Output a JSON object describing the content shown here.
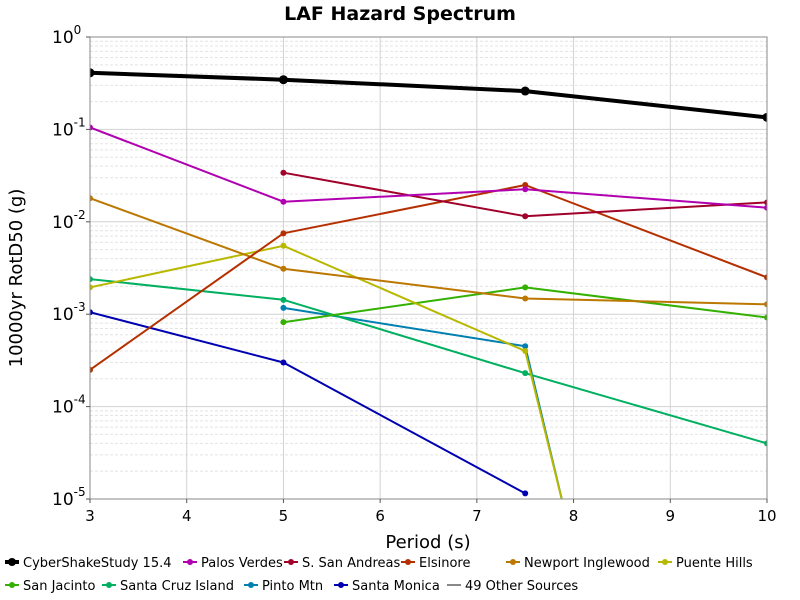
{
  "chart_data": {
    "type": "line",
    "title": "LAF Hazard Spectrum",
    "xlabel": "Period (s)",
    "ylabel": "10000yr RotD50 (g)",
    "xlim": [
      3,
      10
    ],
    "ylim": [
      1e-05,
      1
    ],
    "y_scale": "log",
    "x_ticks": [
      3,
      4,
      5,
      6,
      7,
      8,
      9,
      10
    ],
    "y_ticks": [
      {
        "base": "10",
        "exp": "0",
        "value": 1
      },
      {
        "base": "10",
        "exp": "-1",
        "value": 0.1
      },
      {
        "base": "10",
        "exp": "-2",
        "value": 0.01
      },
      {
        "base": "10",
        "exp": "-3",
        "value": 0.001
      },
      {
        "base": "10",
        "exp": "-4",
        "value": 0.0001
      },
      {
        "base": "10",
        "exp": "-5",
        "value": 1e-05
      }
    ],
    "grid": true,
    "legend_placement": "bottom",
    "series": [
      {
        "name": "CyberShakeStudy 15.4",
        "color": "#000000",
        "bold": true,
        "x": [
          3,
          5,
          7.5,
          10
        ],
        "y": [
          0.41,
          0.345,
          0.26,
          0.135
        ]
      },
      {
        "name": "Palos Verdes",
        "color": "#b000b0",
        "x": [
          3,
          5,
          7.5,
          10
        ],
        "y": [
          0.105,
          0.0165,
          0.0225,
          0.0142
        ]
      },
      {
        "name": "S. San Andreas",
        "color": "#a0002a",
        "x": [
          5,
          7.5,
          10
        ],
        "y": [
          0.034,
          0.0115,
          0.0162
        ]
      },
      {
        "name": "Elsinore",
        "color": "#b53000",
        "x": [
          3,
          5,
          7.5,
          10
        ],
        "y": [
          0.00025,
          0.0075,
          0.025,
          0.0025
        ]
      },
      {
        "name": "Newport Inglewood",
        "color": "#bb7700",
        "x": [
          3,
          5,
          7.5,
          10
        ],
        "y": [
          0.018,
          0.0031,
          0.00148,
          0.00128
        ]
      },
      {
        "name": "Puente Hills",
        "color": "#b8b800",
        "x": [
          3,
          5,
          7.5,
          7.9
        ],
        "y": [
          0.00195,
          0.0055,
          0.0004,
          8e-06
        ]
      },
      {
        "name": "San Jacinto",
        "color": "#33b000",
        "x": [
          5,
          7.5,
          10
        ],
        "y": [
          0.00082,
          0.00195,
          0.00092
        ]
      },
      {
        "name": "Santa Cruz Island",
        "color": "#00b060",
        "x": [
          3,
          5,
          7.5,
          10
        ],
        "y": [
          0.0024,
          0.00143,
          0.00023,
          4e-05
        ]
      },
      {
        "name": "Pinto Mtn",
        "color": "#0080b0",
        "x": [
          5,
          7.5,
          7.9
        ],
        "y": [
          0.00117,
          0.00045,
          8e-06
        ]
      },
      {
        "name": "Santa Monica",
        "color": "#0000b0",
        "x": [
          3,
          5,
          7.5
        ],
        "y": [
          0.00105,
          0.0003,
          1.15e-05
        ]
      },
      {
        "name": "49 Other Sources",
        "color": "#888888",
        "no_marker": true,
        "x": [],
        "y": []
      }
    ]
  }
}
